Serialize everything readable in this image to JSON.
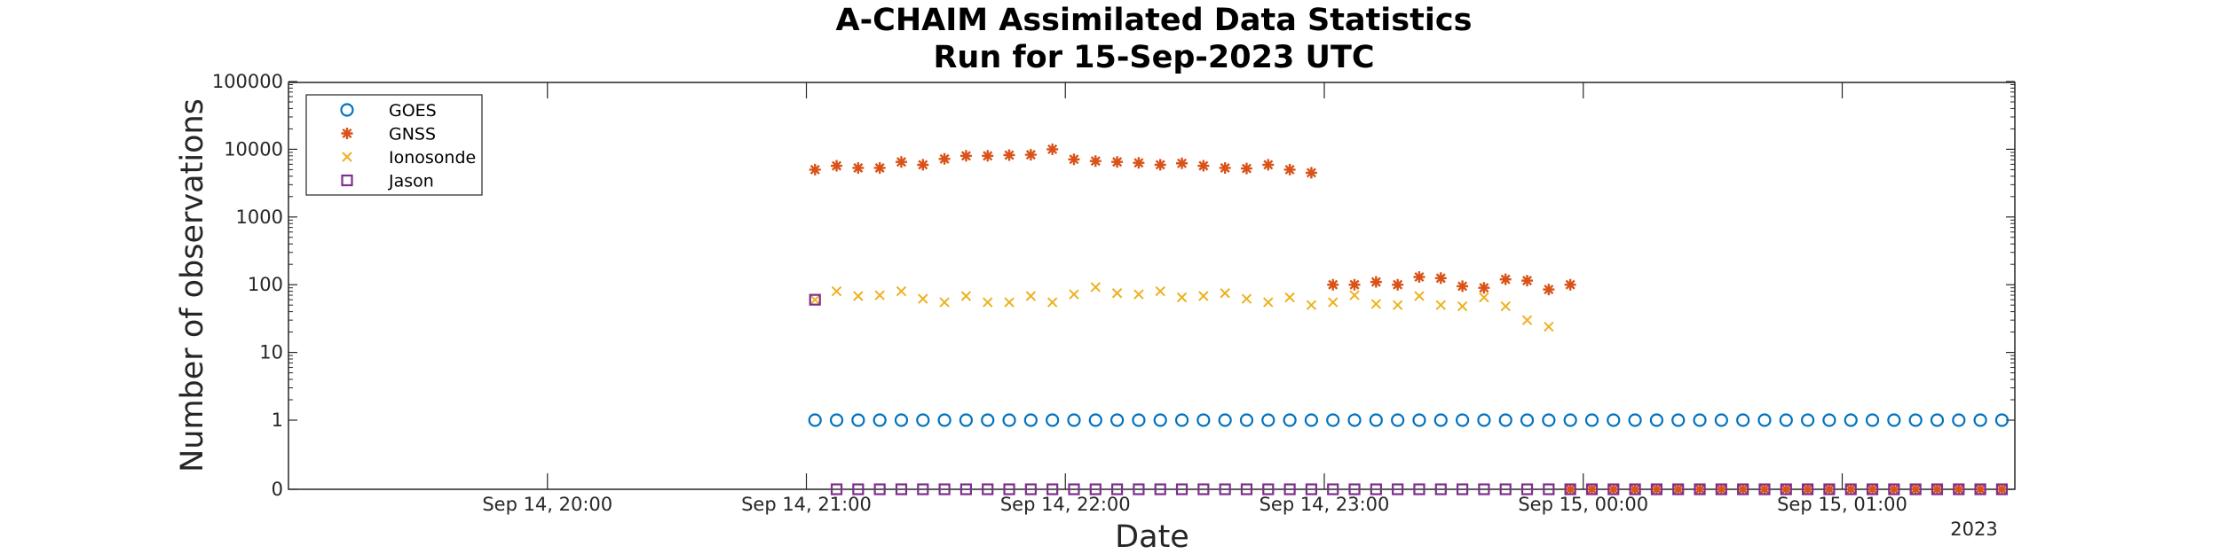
{
  "chart_data": {
    "type": "scatter",
    "title": [
      "A-CHAIM Assimilated Data Statistics",
      "Run for 15-Sep-2023 UTC"
    ],
    "xlabel": "Date",
    "ylabel": "Number of observations",
    "year_label": "2023",
    "y_scale": "log",
    "ylim": [
      0,
      100000
    ],
    "xlim": [
      "2023-09-14 19:00",
      "2023-09-15 01:40"
    ],
    "y_ticks": [
      {
        "value": 0,
        "label": "0"
      },
      {
        "value": 1,
        "label": "1"
      },
      {
        "value": 10,
        "label": "10"
      },
      {
        "value": 100,
        "label": "100"
      },
      {
        "value": 1000,
        "label": "1000"
      },
      {
        "value": 10000,
        "label": "10000"
      },
      {
        "value": 100000,
        "label": "100000"
      }
    ],
    "x_ticks": [
      {
        "time": "2023-09-14 20:00",
        "label": "Sep 14, 20:00"
      },
      {
        "time": "2023-09-14 21:00",
        "label": "Sep 14, 21:00"
      },
      {
        "time": "2023-09-14 22:00",
        "label": "Sep 14, 22:00"
      },
      {
        "time": "2023-09-14 23:00",
        "label": "Sep 14, 23:00"
      },
      {
        "time": "2023-09-15 00:00",
        "label": "Sep 15, 00:00"
      },
      {
        "time": "2023-09-15 01:00",
        "label": "Sep 15, 01:00"
      }
    ],
    "grid": false,
    "legend_position": "top-left",
    "series": [
      {
        "name": "GOES",
        "marker": "circle",
        "color": "#0072BD",
        "x_start": "2023-09-14 21:02",
        "x_end": "2023-09-15 01:40",
        "x_step_min": 5,
        "values": [
          1,
          1,
          1,
          1,
          1,
          1,
          1,
          1,
          1,
          1,
          1,
          1,
          1,
          1,
          1,
          1,
          1,
          1,
          1,
          1,
          1,
          1,
          1,
          1,
          1,
          1,
          1,
          1,
          1,
          1,
          1,
          1,
          1,
          1,
          1,
          1,
          1,
          1,
          1,
          1,
          1,
          1,
          1,
          1,
          1,
          1,
          1,
          1,
          1,
          1,
          1,
          1,
          1,
          1,
          1,
          1
        ]
      },
      {
        "name": "GNSS",
        "marker": "asterisk",
        "color": "#D95319",
        "x_start": "2023-09-14 21:02",
        "x_step_min": 5,
        "values": [
          5000,
          5700,
          5300,
          5300,
          6500,
          5900,
          7200,
          8000,
          8000,
          8200,
          8300,
          10000,
          7100,
          6700,
          6500,
          6300,
          5900,
          6200,
          5700,
          5300,
          5200,
          5900,
          5000,
          4500,
          100,
          100,
          110,
          100,
          130,
          125,
          95,
          90,
          120,
          115,
          85,
          100
        ]
      },
      {
        "name": "Ionosonde",
        "marker": "x",
        "color": "#EDB120",
        "x_start": "2023-09-14 21:02",
        "x_step_min": 5,
        "values": [
          60,
          80,
          68,
          70,
          80,
          62,
          55,
          68,
          55,
          55,
          68,
          55,
          72,
          92,
          75,
          72,
          80,
          65,
          68,
          75,
          62,
          55,
          65,
          50,
          55,
          70,
          52,
          50,
          68,
          50,
          48,
          65,
          48,
          30,
          24
        ]
      },
      {
        "name": "Jason",
        "marker": "square",
        "color": "#7E2F8E",
        "points": [
          {
            "x": "2023-09-14 21:02",
            "y": 60
          }
        ],
        "x_start": "2023-09-14 21:07",
        "x_end": "2023-09-15 01:40",
        "x_step_min": 5,
        "zero_fill_from": "2023-09-14 23:57",
        "zero_fill_color": "#D95319",
        "zero_value": 0
      }
    ]
  }
}
